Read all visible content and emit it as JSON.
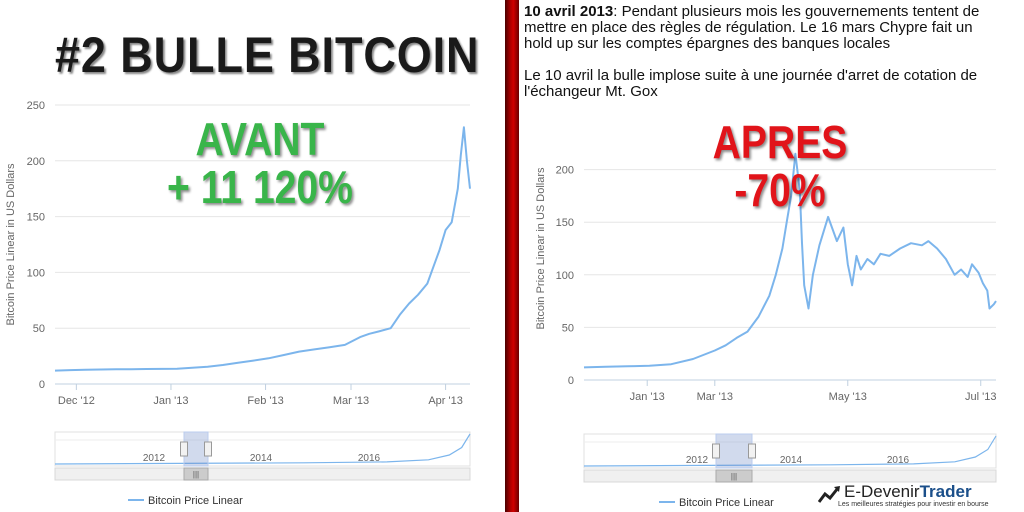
{
  "left": {
    "title": "#2 BULLE BITCOIN",
    "label_main": "AVANT",
    "label_pct": "+ 11 120%"
  },
  "right": {
    "desc1_bold": "10 avril 2013",
    "desc1_rest": ": Pendant plusieurs mois les gouvernements tentent de mettre en place des règles de régulation. Le 16 mars Chypre fait un hold up sur les comptes épargnes des banques locales",
    "desc2": "Le 10 avril la bulle implose suite à une journée d'arret de cotation de l'échangeur Mt. Gox",
    "label_main": "APRES",
    "label_pct": "-70%"
  },
  "brand": {
    "name_part1": "E-Devenir",
    "name_part2": "Trader",
    "tagline": "Les meilleures stratégies pour investir en bourse"
  },
  "colors": {
    "line": "#7cb5ec",
    "green": "#39b54a",
    "red": "#e1141a",
    "grid": "#e6e6e6"
  },
  "chart_data": [
    {
      "type": "line",
      "title": "",
      "ylabel": "Bitcoin Price Linear in US Dollars",
      "ylim": [
        0,
        250
      ],
      "yticks": [
        0,
        50,
        100,
        150,
        200,
        250
      ],
      "xlim": [
        0,
        136
      ],
      "xticks": [
        {
          "pos": 7,
          "label": "Dec '12"
        },
        {
          "pos": 38,
          "label": "Jan '13"
        },
        {
          "pos": 69,
          "label": "Feb '13"
        },
        {
          "pos": 97,
          "label": "Mar '13"
        },
        {
          "pos": 128,
          "label": "Apr '13"
        }
      ],
      "legend": "Bitcoin Price Linear",
      "navigator_labels": [
        "2012",
        "2014",
        "2016"
      ],
      "series": [
        {
          "name": "Bitcoin Price Linear",
          "x": [
            0,
            5,
            10,
            15,
            20,
            25,
            30,
            35,
            40,
            45,
            50,
            55,
            60,
            65,
            70,
            75,
            80,
            85,
            90,
            95,
            100,
            103,
            106,
            110,
            113,
            116,
            119,
            122,
            124,
            126,
            128,
            130,
            132,
            133,
            134,
            135,
            136
          ],
          "y": [
            12,
            12.5,
            12.8,
            13,
            13.2,
            13.3,
            13.4,
            13.5,
            13.6,
            14.5,
            15.5,
            17,
            19,
            21,
            23,
            26,
            29,
            31,
            33,
            35,
            42,
            45,
            47,
            50,
            62,
            72,
            80,
            90,
            105,
            120,
            138,
            145,
            175,
            205,
            230,
            200,
            175
          ]
        }
      ]
    },
    {
      "type": "line",
      "title": "",
      "ylabel": "Bitcoin Price Linear in US Dollars",
      "ylim": [
        0,
        250
      ],
      "yticks": [
        0,
        50,
        100,
        150,
        200
      ],
      "xlim": [
        0,
        189
      ],
      "xticks": [
        {
          "pos": 29,
          "label": "Jan '13"
        },
        {
          "pos": 60,
          "label": "Mar '13"
        },
        {
          "pos": 121,
          "label": "May '13"
        },
        {
          "pos": 182,
          "label": "Jul '13"
        }
      ],
      "legend": "Bitcoin Price Linear",
      "navigator_labels": [
        "2012",
        "2014",
        "2016"
      ],
      "series": [
        {
          "name": "Bitcoin Price Linear",
          "x": [
            0,
            10,
            20,
            30,
            40,
            50,
            60,
            65,
            70,
            75,
            80,
            85,
            88,
            91,
            93,
            95,
            97,
            99,
            100,
            101,
            103,
            105,
            108,
            112,
            116,
            119,
            121,
            123,
            125,
            127,
            130,
            133,
            136,
            140,
            145,
            150,
            155,
            158,
            162,
            166,
            170,
            173,
            176,
            178,
            181,
            183,
            185,
            186,
            188,
            189
          ],
          "y": [
            12,
            12.5,
            13,
            13.5,
            15,
            20,
            28,
            33,
            40,
            46,
            60,
            80,
            100,
            125,
            150,
            175,
            215,
            180,
            130,
            90,
            68,
            100,
            128,
            155,
            132,
            145,
            110,
            90,
            118,
            105,
            115,
            110,
            120,
            118,
            125,
            130,
            128,
            132,
            125,
            115,
            100,
            105,
            98,
            110,
            102,
            92,
            85,
            68,
            72,
            75
          ]
        }
      ]
    }
  ]
}
